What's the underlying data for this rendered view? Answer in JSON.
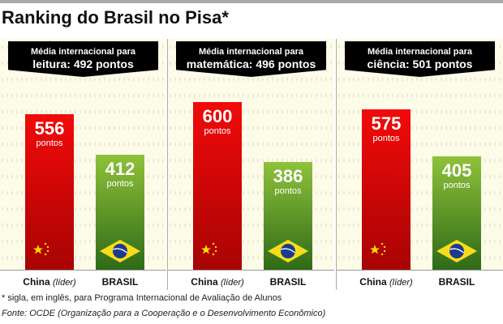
{
  "title": "Ranking do Brasil no Pisa*",
  "chart_data": {
    "type": "bar",
    "title": "Ranking do Brasil no Pisa*",
    "unit": "pontos",
    "categories": [
      "China (líder)",
      "BRASIL"
    ],
    "panels": [
      {
        "banner_line1": "Média internacional para",
        "banner_line2": "leitura: 492 pontos",
        "subject": "leitura",
        "international_average": 492,
        "values": [
          556,
          412
        ]
      },
      {
        "banner_line1": "Média internacional para",
        "banner_line2": "matemática: 496 pontos",
        "subject": "matemática",
        "international_average": 496,
        "values": [
          600,
          386
        ]
      },
      {
        "banner_line1": "Média internacional para",
        "banner_line2": "ciência: 501 pontos",
        "subject": "ciência",
        "international_average": 501,
        "values": [
          575,
          405
        ]
      }
    ],
    "colors": {
      "china": "#e00606",
      "brasil": "#5f9a25"
    }
  },
  "labels": {
    "china": "China",
    "lider": "(líder)",
    "brasil": "BRASIL",
    "unit": "pontos"
  },
  "footnote": "* sigla, em inglês, para Programa Internacional de Avaliação de Alunos",
  "source": "Fonte: OCDE (Organização para a Cooperação e o Desenvolvimento Econômico)"
}
